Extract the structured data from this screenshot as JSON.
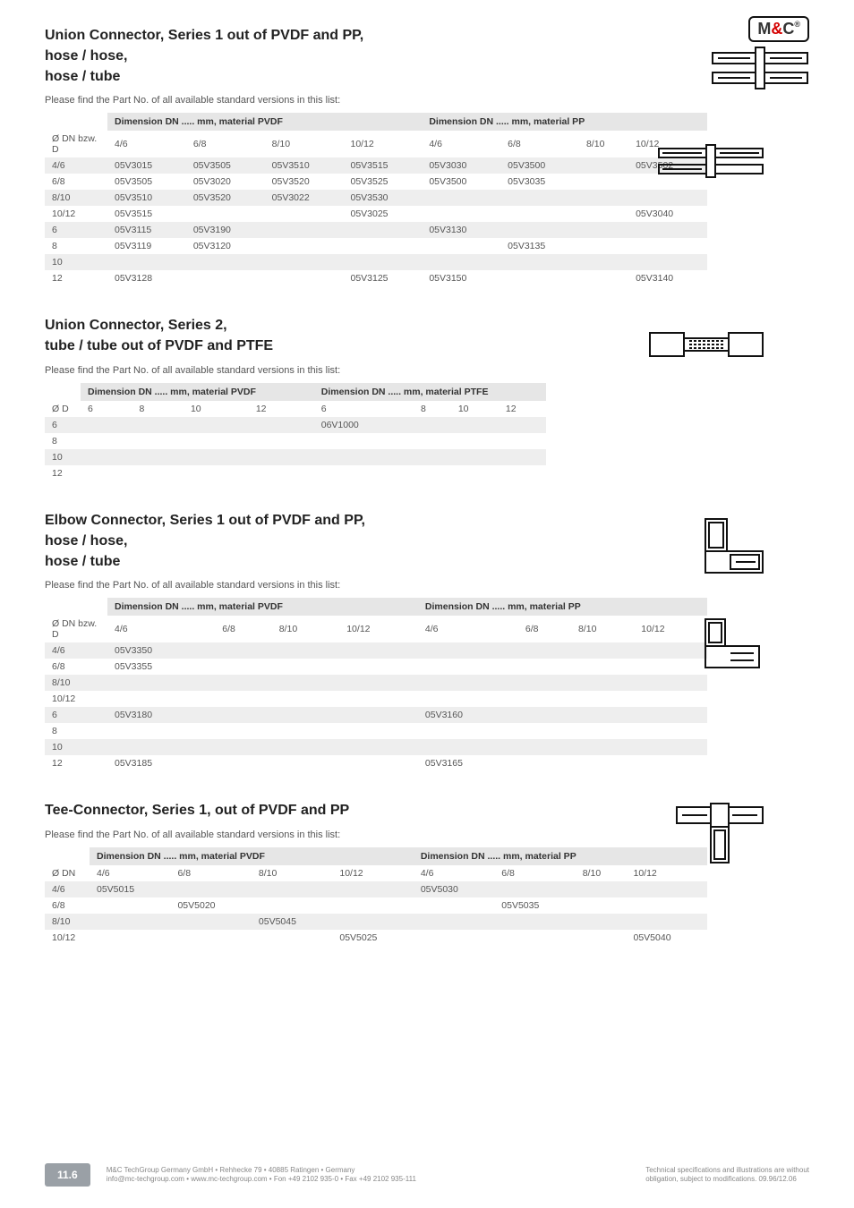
{
  "logo": {
    "text_m": "M",
    "text_amp": "&",
    "text_c": "C",
    "reg": "®"
  },
  "sections": [
    {
      "titles": [
        "Union Connector, Series 1 out of PVDF and PP,",
        "hose / hose,",
        "hose / tube"
      ],
      "intro": "Please find the Part No. of all available standard versions in this list:",
      "group1": "Dimension DN ..... mm, material PVDF",
      "group2": "Dimension DN ..... mm, material PP",
      "rowhead_label": "Ø DN bzw. D",
      "cols": [
        "4/6",
        "6/8",
        "8/10",
        "10/12",
        "4/6",
        "6/8",
        "8/10",
        "10/12"
      ],
      "rows": [
        {
          "h": "4/6",
          "c": [
            "05V3015",
            "05V3505",
            "05V3510",
            "05V3515",
            "05V3030",
            "05V3500",
            "",
            "05V3502"
          ],
          "s": true
        },
        {
          "h": "6/8",
          "c": [
            "05V3505",
            "05V3020",
            "05V3520",
            "05V3525",
            "05V3500",
            "05V3035",
            "",
            ""
          ],
          "s": false
        },
        {
          "h": "8/10",
          "c": [
            "05V3510",
            "05V3520",
            "05V3022",
            "05V3530",
            "",
            "",
            "",
            ""
          ],
          "s": true
        },
        {
          "h": "10/12",
          "c": [
            "05V3515",
            "",
            "",
            "05V3025",
            "",
            "",
            "",
            "05V3040"
          ],
          "s": false
        },
        {
          "h": "6",
          "c": [
            "05V3115",
            "05V3190",
            "",
            "",
            "05V3130",
            "",
            "",
            ""
          ],
          "s": true
        },
        {
          "h": "8",
          "c": [
            "05V3119",
            "05V3120",
            "",
            "",
            "",
            "05V3135",
            "",
            ""
          ],
          "s": false
        },
        {
          "h": "10",
          "c": [
            "",
            "",
            "",
            "",
            "",
            "",
            "",
            ""
          ],
          "s": true
        },
        {
          "h": "12",
          "c": [
            "05V3128",
            "",
            "",
            "05V3125",
            "05V3150",
            "",
            "",
            "05V3140"
          ],
          "s": false
        }
      ]
    },
    {
      "titles": [
        "Union Connector, Series 2,",
        "tube / tube out of PVDF and PTFE"
      ],
      "intro": "Please find the Part No. of all available standard versions in this list:",
      "group1": "Dimension DN ..... mm, material PVDF",
      "group2": "Dimension DN ..... mm, material PTFE",
      "rowhead_label": "Ø D",
      "cols": [
        "6",
        "8",
        "10",
        "12",
        "6",
        "8",
        "10",
        "12"
      ],
      "rows": [
        {
          "h": "6",
          "c": [
            "",
            "",
            "",
            "",
            "06V1000",
            "",
            "",
            ""
          ],
          "s": true
        },
        {
          "h": "8",
          "c": [
            "",
            "",
            "",
            "",
            "",
            "",
            "",
            ""
          ],
          "s": false
        },
        {
          "h": "10",
          "c": [
            "",
            "",
            "",
            "",
            "",
            "",
            "",
            ""
          ],
          "s": true
        },
        {
          "h": "12",
          "c": [
            "",
            "",
            "",
            "",
            "",
            "",
            "",
            ""
          ],
          "s": false
        }
      ]
    },
    {
      "titles": [
        "Elbow Connector, Series 1 out of PVDF and PP,",
        "hose / hose,",
        "hose / tube"
      ],
      "intro": "Please find the Part No. of all available standard versions in this list:",
      "group1": "Dimension DN ..... mm, material PVDF",
      "group2": "Dimension DN ..... mm, material PP",
      "rowhead_label": "Ø DN bzw. D",
      "cols": [
        "4/6",
        "6/8",
        "8/10",
        "10/12",
        "4/6",
        "6/8",
        "8/10",
        "10/12"
      ],
      "rows": [
        {
          "h": "4/6",
          "c": [
            "05V3350",
            "",
            "",
            "",
            "",
            "",
            "",
            ""
          ],
          "s": true
        },
        {
          "h": "6/8",
          "c": [
            "05V3355",
            "",
            "",
            "",
            "",
            "",
            "",
            ""
          ],
          "s": false
        },
        {
          "h": "8/10",
          "c": [
            "",
            "",
            "",
            "",
            "",
            "",
            "",
            ""
          ],
          "s": true
        },
        {
          "h": "10/12",
          "c": [
            "",
            "",
            "",
            "",
            "",
            "",
            "",
            ""
          ],
          "s": false
        },
        {
          "h": "6",
          "c": [
            "05V3180",
            "",
            "",
            "",
            "05V3160",
            "",
            "",
            ""
          ],
          "s": true
        },
        {
          "h": "8",
          "c": [
            "",
            "",
            "",
            "",
            "",
            "",
            "",
            ""
          ],
          "s": false
        },
        {
          "h": "10",
          "c": [
            "",
            "",
            "",
            "",
            "",
            "",
            "",
            ""
          ],
          "s": true
        },
        {
          "h": "12",
          "c": [
            "05V3185",
            "",
            "",
            "",
            "05V3165",
            "",
            "",
            ""
          ],
          "s": false
        }
      ]
    },
    {
      "titles": [
        "Tee-Connector, Series 1, out of PVDF and PP"
      ],
      "intro": "Please find the Part No. of all available standard versions in this list:",
      "group1": "Dimension DN ..... mm, material PVDF",
      "group2": "Dimension DN ..... mm, material PP",
      "rowhead_label": "Ø DN",
      "cols": [
        "4/6",
        "6/8",
        "8/10",
        "10/12",
        "4/6",
        "6/8",
        "8/10",
        "10/12"
      ],
      "rows": [
        {
          "h": "4/6",
          "c": [
            "05V5015",
            "",
            "",
            "",
            "05V5030",
            "",
            "",
            ""
          ],
          "s": true
        },
        {
          "h": "6/8",
          "c": [
            "",
            "05V5020",
            "",
            "",
            "",
            "05V5035",
            "",
            ""
          ],
          "s": false
        },
        {
          "h": "8/10",
          "c": [
            "",
            "",
            "05V5045",
            "",
            "",
            "",
            "",
            ""
          ],
          "s": true
        },
        {
          "h": "10/12",
          "c": [
            "",
            "",
            "",
            "05V5025",
            "",
            "",
            "",
            "05V5040"
          ],
          "s": false
        }
      ]
    }
  ],
  "footer": {
    "badge": "11.6",
    "left1": "M&C TechGroup Germany GmbH • Rehhecke 79 • 40885 Ratingen • Germany",
    "left2": "info@mc-techgroup.com • www.mc-techgroup.com • Fon +49 2102 935-0 • Fax +49 2102 935-111",
    "right1": "Technical specifications and illustrations are without",
    "right2": "obligation, subject to modifications. 09.96/12.06"
  }
}
